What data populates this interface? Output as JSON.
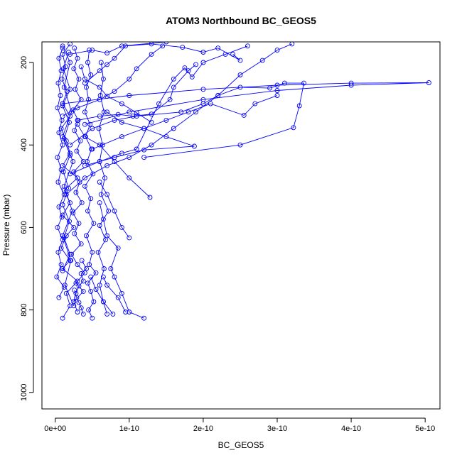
{
  "chart_data": {
    "type": "scatter",
    "title": "ATOM3 Northbound BC_GEOS5",
    "xlabel": "BC_GEOS5",
    "ylabel": "Pressure (mbar)",
    "xlim": [
      -1.8e-11,
      5.2e-10
    ],
    "ylim": [
      1040,
      150
    ],
    "y_inverted": true,
    "x_ticks": [
      {
        "value": 0,
        "label": "0e+00"
      },
      {
        "value": 1e-10,
        "label": "1e-10"
      },
      {
        "value": 2e-10,
        "label": "2e-10"
      },
      {
        "value": 3e-10,
        "label": "3e-10"
      },
      {
        "value": 4e-10,
        "label": "4e-10"
      },
      {
        "value": 5e-10,
        "label": "5e-10"
      }
    ],
    "y_ticks": [
      {
        "value": 200,
        "label": "200"
      },
      {
        "value": 400,
        "label": "400"
      },
      {
        "value": 600,
        "label": "600"
      },
      {
        "value": 800,
        "label": "800"
      },
      {
        "value": 1000,
        "label": "1000"
      }
    ],
    "grid": false,
    "legend": "none",
    "marker": "open-circle",
    "connected": true,
    "color": "#0000ff",
    "series": [
      {
        "points": [
          [
            1e-11,
            820
          ],
          [
            2e-11,
            790
          ],
          [
            1.5e-11,
            760
          ],
          [
            3e-11,
            730
          ],
          [
            1e-11,
            700
          ],
          [
            2e-11,
            680
          ],
          [
            8e-12,
            650
          ],
          [
            1.5e-11,
            620
          ],
          [
            2.5e-11,
            600
          ],
          [
            1e-11,
            570
          ],
          [
            2e-11,
            540
          ],
          [
            1.2e-11,
            510
          ],
          [
            3e-11,
            480
          ],
          [
            1e-11,
            450
          ],
          [
            2e-11,
            420
          ],
          [
            1.5e-11,
            390
          ],
          [
            8e-12,
            360
          ],
          [
            2e-11,
            330
          ],
          [
            1e-11,
            300
          ],
          [
            1.6e-11,
            270
          ],
          [
            9e-12,
            240
          ],
          [
            1.4e-11,
            210
          ],
          [
            1e-11,
            180
          ],
          [
            2e-11,
            155
          ]
        ]
      },
      {
        "points": [
          [
            5e-12,
            770
          ],
          [
            1.2e-11,
            745
          ],
          [
            2e-12,
            720
          ],
          [
            8e-12,
            690
          ],
          [
            4e-12,
            660
          ],
          [
            1e-11,
            630
          ],
          [
            3e-12,
            600
          ],
          [
            9e-12,
            575
          ],
          [
            5e-12,
            550
          ],
          [
            1.2e-11,
            520
          ],
          [
            4e-12,
            490
          ],
          [
            8e-12,
            460
          ],
          [
            3e-12,
            430
          ],
          [
            1e-11,
            400
          ],
          [
            5e-12,
            370
          ],
          [
            9e-12,
            340
          ],
          [
            3e-12,
            310
          ],
          [
            7e-12,
            280
          ],
          [
            4e-12,
            250
          ],
          [
            8e-12,
            220
          ],
          [
            5e-12,
            190
          ],
          [
            1e-11,
            165
          ]
        ]
      },
      {
        "points": [
          [
            3e-11,
            805
          ],
          [
            2.5e-11,
            780
          ],
          [
            3.8e-11,
            755
          ],
          [
            2.8e-11,
            735
          ],
          [
            4e-11,
            710
          ],
          [
            3e-11,
            690
          ],
          [
            2.2e-11,
            665
          ],
          [
            3.5e-11,
            640
          ],
          [
            2.6e-11,
            615
          ],
          [
            3.2e-11,
            590
          ],
          [
            2.4e-11,
            565
          ],
          [
            3.6e-11,
            540
          ],
          [
            2.8e-11,
            515
          ],
          [
            3.3e-11,
            490
          ],
          [
            2.5e-11,
            465
          ],
          [
            3.8e-11,
            440
          ],
          [
            2.9e-11,
            415
          ],
          [
            3.4e-11,
            390
          ],
          [
            2.6e-11,
            365
          ],
          [
            3.1e-11,
            340
          ],
          [
            2.4e-11,
            315
          ],
          [
            3.5e-11,
            290
          ],
          [
            2.7e-11,
            265
          ],
          [
            3.2e-11,
            240
          ],
          [
            2.5e-11,
            215
          ],
          [
            3e-11,
            190
          ],
          [
            2.6e-11,
            165
          ]
        ]
      },
      {
        "points": [
          [
            5e-11,
            820
          ],
          [
            4.5e-11,
            800
          ],
          [
            5.2e-11,
            780
          ],
          [
            4.8e-11,
            755
          ],
          [
            4.4e-11,
            735
          ],
          [
            5.5e-11,
            710
          ],
          [
            4.6e-11,
            690
          ],
          [
            5e-11,
            660
          ],
          [
            4.2e-11,
            620
          ],
          [
            5.2e-11,
            590
          ],
          [
            4.4e-11,
            560
          ],
          [
            4.8e-11,
            530
          ],
          [
            4e-11,
            500
          ],
          [
            5.1e-11,
            470
          ],
          [
            4.3e-11,
            440
          ],
          [
            4.9e-11,
            410
          ],
          [
            4.1e-11,
            380
          ],
          [
            4.7e-11,
            350
          ],
          [
            4e-11,
            320
          ],
          [
            4.5e-11,
            290
          ],
          [
            4.2e-11,
            260
          ],
          [
            4.8e-11,
            230
          ],
          [
            4.4e-11,
            200
          ],
          [
            4.6e-11,
            170
          ]
        ]
      },
      {
        "points": [
          [
            7e-11,
            810
          ],
          [
            6.5e-11,
            780
          ],
          [
            6e-11,
            740
          ],
          [
            6.6e-11,
            700
          ],
          [
            5.8e-11,
            660
          ],
          [
            6.8e-11,
            630
          ],
          [
            6e-11,
            595
          ],
          [
            7.2e-11,
            560
          ],
          [
            6.2e-11,
            520
          ],
          [
            6.7e-11,
            480
          ],
          [
            6e-11,
            440
          ],
          [
            6.4e-11,
            400
          ],
          [
            5.9e-11,
            360
          ],
          [
            6.6e-11,
            320
          ],
          [
            6.1e-11,
            280
          ],
          [
            6.5e-11,
            240
          ],
          [
            6.2e-11,
            200
          ]
        ]
      },
      {
        "points": [
          [
            1.2e-10,
            820
          ],
          [
            1e-10,
            805
          ],
          [
            9e-11,
            760
          ],
          [
            8e-11,
            720
          ],
          [
            7.5e-11,
            700
          ],
          [
            8.5e-11,
            650
          ],
          [
            7e-11,
            620
          ],
          [
            6.5e-11,
            580
          ],
          [
            6e-11,
            540
          ]
        ]
      },
      {
        "points": [
          [
            1e-10,
            625
          ],
          [
            9e-11,
            600
          ],
          [
            8e-11,
            560
          ],
          [
            7e-11,
            520
          ],
          [
            6e-11,
            490
          ]
        ]
      },
      {
        "points": [
          [
            1.28e-10,
            527
          ],
          [
            1e-10,
            480
          ],
          [
            8e-11,
            440
          ],
          [
            6e-11,
            400
          ],
          [
            4e-11,
            380
          ],
          [
            3e-11,
            350
          ]
        ]
      },
      {
        "points": [
          [
            9.5e-11,
            805
          ],
          [
            8.5e-11,
            770
          ],
          [
            7e-11,
            740
          ],
          [
            6.5e-11,
            720
          ]
        ]
      },
      {
        "points": [
          [
            7.8e-11,
            810
          ],
          [
            6.5e-11,
            780
          ],
          [
            5.5e-11,
            750
          ],
          [
            4.8e-11,
            720
          ]
        ]
      },
      {
        "points": [
          [
            2e-11,
            400
          ],
          [
            5e-11,
            360
          ],
          [
            8e-11,
            340
          ],
          [
            1.1e-10,
            330
          ],
          [
            1.7e-10,
            320
          ],
          [
            2e-10,
            300
          ],
          [
            2.2e-10,
            280
          ],
          [
            2.5e-10,
            260
          ],
          [
            2.9e-10,
            262
          ],
          [
            3.1e-10,
            250
          ],
          [
            3.36e-10,
            250
          ],
          [
            3.3e-10,
            305
          ],
          [
            3.22e-10,
            358
          ],
          [
            2.5e-10,
            400
          ],
          [
            1.2e-10,
            430
          ]
        ]
      },
      {
        "points": [
          [
            1e-11,
            300
          ],
          [
            1e-10,
            280
          ],
          [
            2e-10,
            265
          ],
          [
            3e-10,
            255
          ],
          [
            4e-10,
            250
          ],
          [
            5.05e-10,
            249
          ],
          [
            4e-10,
            255
          ],
          [
            3e-10,
            268
          ],
          [
            2e-10,
            290
          ],
          [
            1e-10,
            320
          ],
          [
            4e-11,
            350
          ]
        ]
      },
      {
        "points": [
          [
            4e-11,
            450
          ],
          [
            8e-11,
            430
          ],
          [
            1.2e-10,
            412
          ],
          [
            1.88e-10,
            403
          ],
          [
            1.5e-10,
            380
          ],
          [
            1.2e-10,
            360
          ],
          [
            9e-11,
            345
          ],
          [
            7e-11,
            320
          ]
        ]
      },
      {
        "points": [
          [
            5e-11,
            410
          ],
          [
            9e-11,
            380
          ],
          [
            1.2e-10,
            360
          ],
          [
            1.5e-10,
            340
          ],
          [
            1.8e-10,
            320
          ],
          [
            2.1e-10,
            300
          ],
          [
            2.55e-10,
            328
          ],
          [
            2.7e-10,
            300
          ],
          [
            3e-10,
            280
          ]
        ]
      },
      {
        "points": [
          [
            3e-11,
            340
          ],
          [
            6e-11,
            330
          ],
          [
            8.5e-11,
            326
          ],
          [
            1.05e-10,
            330
          ],
          [
            1.3e-10,
            325
          ],
          [
            1.55e-10,
            290
          ],
          [
            1.6e-10,
            260
          ],
          [
            1.8e-10,
            220
          ],
          [
            1.9e-10,
            205
          ]
        ]
      },
      {
        "points": [
          [
            2e-11,
            470
          ],
          [
            6e-11,
            440
          ],
          [
            9e-11,
            420
          ],
          [
            1.1e-10,
            410
          ],
          [
            1.4e-10,
            300
          ],
          [
            1.6e-10,
            240
          ],
          [
            1.75e-10,
            213
          ],
          [
            1.85e-10,
            235
          ],
          [
            2e-10,
            200
          ],
          [
            2.3e-10,
            180
          ],
          [
            2.6e-10,
            160
          ]
        ]
      },
      {
        "points": [
          [
            1.5e-11,
            520
          ],
          [
            4e-11,
            480
          ],
          [
            7e-11,
            450
          ],
          [
            1e-10,
            430
          ],
          [
            1.3e-10,
            400
          ],
          [
            1.6e-10,
            360
          ],
          [
            1.9e-10,
            320
          ],
          [
            2.2e-10,
            280
          ],
          [
            2.5e-10,
            230
          ],
          [
            2.8e-10,
            195
          ],
          [
            3e-10,
            170
          ],
          [
            3.2e-10,
            155
          ]
        ]
      },
      {
        "points": [
          [
            1e-11,
            330
          ],
          [
            3e-11,
            310
          ],
          [
            6e-11,
            290
          ],
          [
            8e-11,
            270
          ],
          [
            1e-10,
            240
          ],
          [
            1.1e-10,
            215
          ],
          [
            1.3e-10,
            180
          ],
          [
            1.45e-10,
            160
          ]
        ]
      },
      {
        "points": [
          [
            4e-11,
            250
          ],
          [
            6e-11,
            220
          ],
          [
            7e-11,
            205
          ],
          [
            8e-11,
            190
          ],
          [
            9.5e-11,
            160
          ],
          [
            1.3e-10,
            155
          ],
          [
            1.72e-10,
            163
          ],
          [
            2e-10,
            175
          ],
          [
            2.2e-10,
            165
          ],
          [
            2.5e-10,
            195
          ],
          [
            2.4e-10,
            180
          ]
        ]
      },
      {
        "points": [
          [
            2e-11,
            180
          ],
          [
            5e-11,
            170
          ],
          [
            7e-11,
            177
          ],
          [
            9e-11,
            160
          ],
          [
            1.5e-10,
            150
          ]
        ]
      },
      {
        "points": [
          [
            3.5e-11,
            210
          ],
          [
            4e-11,
            240
          ],
          [
            6e-11,
            260
          ],
          [
            7e-11,
            282
          ],
          [
            9e-11,
            300
          ],
          [
            1.1e-10,
            322
          ],
          [
            1.3e-10,
            345
          ]
        ]
      },
      {
        "points": [
          [
            1e-11,
            160
          ],
          [
            2e-11,
            200
          ],
          [
            1.2e-11,
            260
          ],
          [
            2.2e-11,
            320
          ],
          [
            1e-11,
            380
          ],
          [
            2.4e-11,
            440
          ],
          [
            1.2e-11,
            500
          ],
          [
            2.3e-11,
            560
          ],
          [
            1e-11,
            620
          ],
          [
            2.1e-11,
            680
          ],
          [
            1.3e-11,
            740
          ],
          [
            2.5e-11,
            790
          ]
        ]
      },
      {
        "points": [
          [
            1.8e-11,
            175
          ],
          [
            1.1e-11,
            215
          ],
          [
            2e-11,
            265
          ],
          [
            1e-11,
            305
          ],
          [
            1.9e-11,
            345
          ],
          [
            1.2e-11,
            385
          ],
          [
            2e-11,
            425
          ],
          [
            1.1e-11,
            465
          ],
          [
            1.8e-11,
            505
          ],
          [
            1e-11,
            545
          ],
          [
            1.9e-11,
            585
          ],
          [
            1.2e-11,
            625
          ],
          [
            2e-11,
            665
          ],
          [
            1e-11,
            705
          ]
        ]
      },
      {
        "points": [
          [
            2.5e-11,
            780
          ],
          [
            2.8e-11,
            760
          ],
          [
            3.2e-11,
            742
          ],
          [
            3.8e-11,
            730
          ],
          [
            3.5e-11,
            712
          ],
          [
            4.2e-11,
            700
          ],
          [
            3.6e-11,
            680
          ]
        ]
      },
      {
        "points": [
          [
            3.8e-11,
            810
          ],
          [
            3.5e-11,
            795
          ],
          [
            3.2e-11,
            782
          ],
          [
            2.9e-11,
            770
          ],
          [
            2.6e-11,
            752
          ]
        ]
      }
    ]
  }
}
